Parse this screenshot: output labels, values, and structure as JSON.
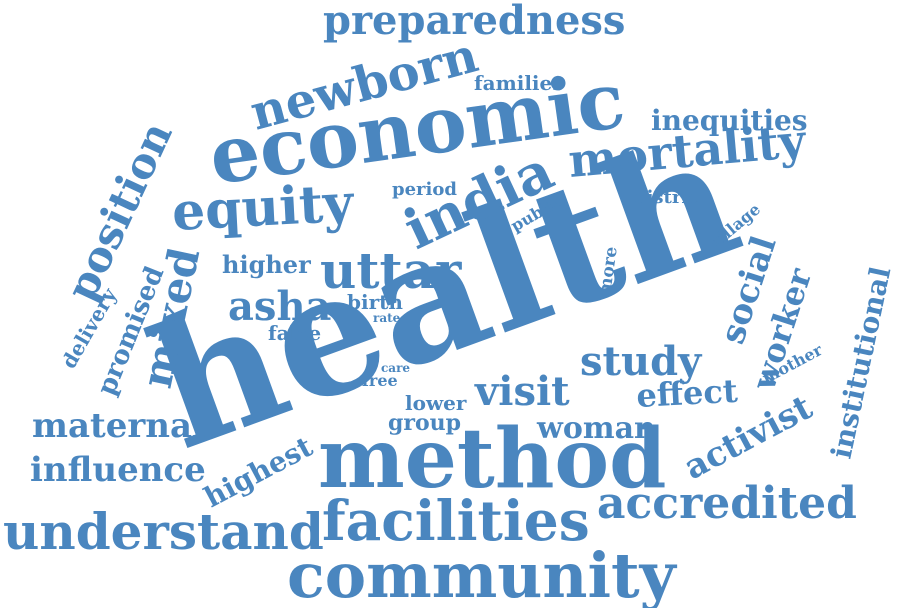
{
  "color": "#4a86bf",
  "words": [
    "health",
    "method",
    "economic",
    "community",
    "facilities",
    "understand",
    "india",
    "equity",
    "newborn",
    "uttar",
    "mortality",
    "preparedness",
    "accredited",
    "position",
    "visit",
    "study",
    "mixed",
    "asha",
    "maternal",
    "influence",
    "social",
    "worker",
    "activist",
    "effect",
    "woman",
    "institutional",
    "promised",
    "highest",
    "inequities",
    "delivery",
    "higher",
    "families",
    "group",
    "lower",
    "period",
    "district",
    "village",
    "public",
    "more",
    "mother",
    "birth",
    "false",
    "free",
    "rate",
    "care"
  ]
}
